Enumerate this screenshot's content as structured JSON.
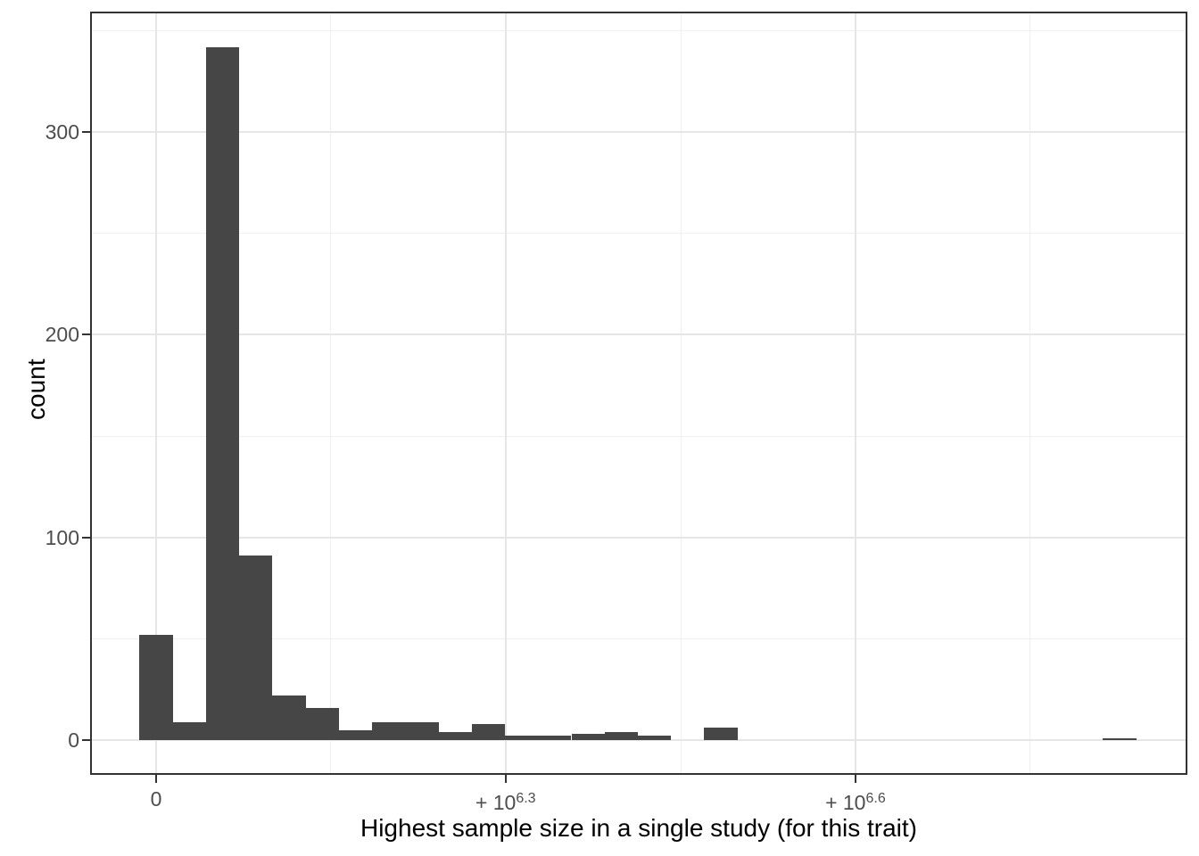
{
  "chart_data": {
    "type": "histogram",
    "title": "",
    "xlabel": "Highest sample size in a single study (for this trait)",
    "ylabel": "count",
    "x_scale": "pseudo-log (signed log10), labels at 0 and 10^6.3, 10^6.6",
    "x_ticks": [
      {
        "base": "0",
        "sup": "",
        "at_bin": 0
      },
      {
        "base": "+ 10",
        "sup": "6.3",
        "at_bin": 10.52
      },
      {
        "base": "+ 10",
        "sup": "6.6",
        "at_bin": 21.05
      }
    ],
    "x_minor_ticks_at_bin": [
      5.26,
      15.79,
      26.31
    ],
    "y_ticks": [
      0,
      100,
      200,
      300
    ],
    "y_minor_ticks": [
      50,
      150,
      250,
      350
    ],
    "ylim": [
      0,
      358
    ],
    "n_bins": 30,
    "bin_counts": [
      52,
      9,
      342,
      91,
      22,
      16,
      5,
      9,
      9,
      4,
      8,
      2,
      2,
      3,
      4,
      2,
      0,
      6,
      0,
      0,
      0,
      0,
      0,
      0,
      0,
      0,
      0,
      0,
      0,
      1
    ],
    "grid": "major and minor, light gray on white panel",
    "legend": "none",
    "colors": {
      "bar_fill": "#464646",
      "grid_major": "#e6e6e6",
      "grid_minor": "#f0f0f0",
      "panel_border": "#333333",
      "tick_mark": "#333333",
      "tick_label": "#4d4d4d",
      "axis_title": "#000000",
      "background": "#ffffff"
    }
  }
}
